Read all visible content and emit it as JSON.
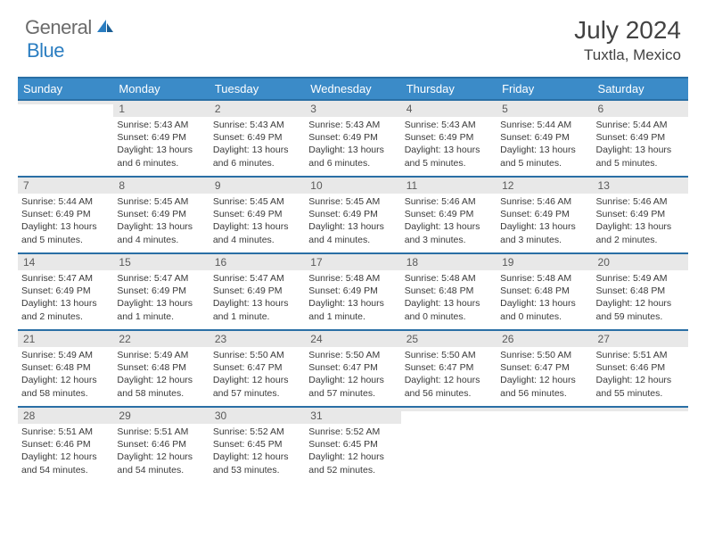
{
  "brand": {
    "part1": "General",
    "part2": "Blue"
  },
  "title": "July 2024",
  "location": "Tuxtla, Mexico",
  "colors": {
    "header_bg": "#3b8bc8",
    "header_border": "#2a6fa5",
    "daynum_bg": "#e8e8e8",
    "text": "#3a3a3a",
    "brand_gray": "#6b6b6b",
    "brand_blue": "#2a7dc1"
  },
  "weekdays": [
    "Sunday",
    "Monday",
    "Tuesday",
    "Wednesday",
    "Thursday",
    "Friday",
    "Saturday"
  ],
  "weeks": [
    [
      {
        "num": "",
        "sunrise": "",
        "sunset": "",
        "daylight": ""
      },
      {
        "num": "1",
        "sunrise": "Sunrise: 5:43 AM",
        "sunset": "Sunset: 6:49 PM",
        "daylight": "Daylight: 13 hours and 6 minutes."
      },
      {
        "num": "2",
        "sunrise": "Sunrise: 5:43 AM",
        "sunset": "Sunset: 6:49 PM",
        "daylight": "Daylight: 13 hours and 6 minutes."
      },
      {
        "num": "3",
        "sunrise": "Sunrise: 5:43 AM",
        "sunset": "Sunset: 6:49 PM",
        "daylight": "Daylight: 13 hours and 6 minutes."
      },
      {
        "num": "4",
        "sunrise": "Sunrise: 5:43 AM",
        "sunset": "Sunset: 6:49 PM",
        "daylight": "Daylight: 13 hours and 5 minutes."
      },
      {
        "num": "5",
        "sunrise": "Sunrise: 5:44 AM",
        "sunset": "Sunset: 6:49 PM",
        "daylight": "Daylight: 13 hours and 5 minutes."
      },
      {
        "num": "6",
        "sunrise": "Sunrise: 5:44 AM",
        "sunset": "Sunset: 6:49 PM",
        "daylight": "Daylight: 13 hours and 5 minutes."
      }
    ],
    [
      {
        "num": "7",
        "sunrise": "Sunrise: 5:44 AM",
        "sunset": "Sunset: 6:49 PM",
        "daylight": "Daylight: 13 hours and 5 minutes."
      },
      {
        "num": "8",
        "sunrise": "Sunrise: 5:45 AM",
        "sunset": "Sunset: 6:49 PM",
        "daylight": "Daylight: 13 hours and 4 minutes."
      },
      {
        "num": "9",
        "sunrise": "Sunrise: 5:45 AM",
        "sunset": "Sunset: 6:49 PM",
        "daylight": "Daylight: 13 hours and 4 minutes."
      },
      {
        "num": "10",
        "sunrise": "Sunrise: 5:45 AM",
        "sunset": "Sunset: 6:49 PM",
        "daylight": "Daylight: 13 hours and 4 minutes."
      },
      {
        "num": "11",
        "sunrise": "Sunrise: 5:46 AM",
        "sunset": "Sunset: 6:49 PM",
        "daylight": "Daylight: 13 hours and 3 minutes."
      },
      {
        "num": "12",
        "sunrise": "Sunrise: 5:46 AM",
        "sunset": "Sunset: 6:49 PM",
        "daylight": "Daylight: 13 hours and 3 minutes."
      },
      {
        "num": "13",
        "sunrise": "Sunrise: 5:46 AM",
        "sunset": "Sunset: 6:49 PM",
        "daylight": "Daylight: 13 hours and 2 minutes."
      }
    ],
    [
      {
        "num": "14",
        "sunrise": "Sunrise: 5:47 AM",
        "sunset": "Sunset: 6:49 PM",
        "daylight": "Daylight: 13 hours and 2 minutes."
      },
      {
        "num": "15",
        "sunrise": "Sunrise: 5:47 AM",
        "sunset": "Sunset: 6:49 PM",
        "daylight": "Daylight: 13 hours and 1 minute."
      },
      {
        "num": "16",
        "sunrise": "Sunrise: 5:47 AM",
        "sunset": "Sunset: 6:49 PM",
        "daylight": "Daylight: 13 hours and 1 minute."
      },
      {
        "num": "17",
        "sunrise": "Sunrise: 5:48 AM",
        "sunset": "Sunset: 6:49 PM",
        "daylight": "Daylight: 13 hours and 1 minute."
      },
      {
        "num": "18",
        "sunrise": "Sunrise: 5:48 AM",
        "sunset": "Sunset: 6:48 PM",
        "daylight": "Daylight: 13 hours and 0 minutes."
      },
      {
        "num": "19",
        "sunrise": "Sunrise: 5:48 AM",
        "sunset": "Sunset: 6:48 PM",
        "daylight": "Daylight: 13 hours and 0 minutes."
      },
      {
        "num": "20",
        "sunrise": "Sunrise: 5:49 AM",
        "sunset": "Sunset: 6:48 PM",
        "daylight": "Daylight: 12 hours and 59 minutes."
      }
    ],
    [
      {
        "num": "21",
        "sunrise": "Sunrise: 5:49 AM",
        "sunset": "Sunset: 6:48 PM",
        "daylight": "Daylight: 12 hours and 58 minutes."
      },
      {
        "num": "22",
        "sunrise": "Sunrise: 5:49 AM",
        "sunset": "Sunset: 6:48 PM",
        "daylight": "Daylight: 12 hours and 58 minutes."
      },
      {
        "num": "23",
        "sunrise": "Sunrise: 5:50 AM",
        "sunset": "Sunset: 6:47 PM",
        "daylight": "Daylight: 12 hours and 57 minutes."
      },
      {
        "num": "24",
        "sunrise": "Sunrise: 5:50 AM",
        "sunset": "Sunset: 6:47 PM",
        "daylight": "Daylight: 12 hours and 57 minutes."
      },
      {
        "num": "25",
        "sunrise": "Sunrise: 5:50 AM",
        "sunset": "Sunset: 6:47 PM",
        "daylight": "Daylight: 12 hours and 56 minutes."
      },
      {
        "num": "26",
        "sunrise": "Sunrise: 5:50 AM",
        "sunset": "Sunset: 6:47 PM",
        "daylight": "Daylight: 12 hours and 56 minutes."
      },
      {
        "num": "27",
        "sunrise": "Sunrise: 5:51 AM",
        "sunset": "Sunset: 6:46 PM",
        "daylight": "Daylight: 12 hours and 55 minutes."
      }
    ],
    [
      {
        "num": "28",
        "sunrise": "Sunrise: 5:51 AM",
        "sunset": "Sunset: 6:46 PM",
        "daylight": "Daylight: 12 hours and 54 minutes."
      },
      {
        "num": "29",
        "sunrise": "Sunrise: 5:51 AM",
        "sunset": "Sunset: 6:46 PM",
        "daylight": "Daylight: 12 hours and 54 minutes."
      },
      {
        "num": "30",
        "sunrise": "Sunrise: 5:52 AM",
        "sunset": "Sunset: 6:45 PM",
        "daylight": "Daylight: 12 hours and 53 minutes."
      },
      {
        "num": "31",
        "sunrise": "Sunrise: 5:52 AM",
        "sunset": "Sunset: 6:45 PM",
        "daylight": "Daylight: 12 hours and 52 minutes."
      },
      {
        "num": "",
        "sunrise": "",
        "sunset": "",
        "daylight": ""
      },
      {
        "num": "",
        "sunrise": "",
        "sunset": "",
        "daylight": ""
      },
      {
        "num": "",
        "sunrise": "",
        "sunset": "",
        "daylight": ""
      }
    ]
  ]
}
